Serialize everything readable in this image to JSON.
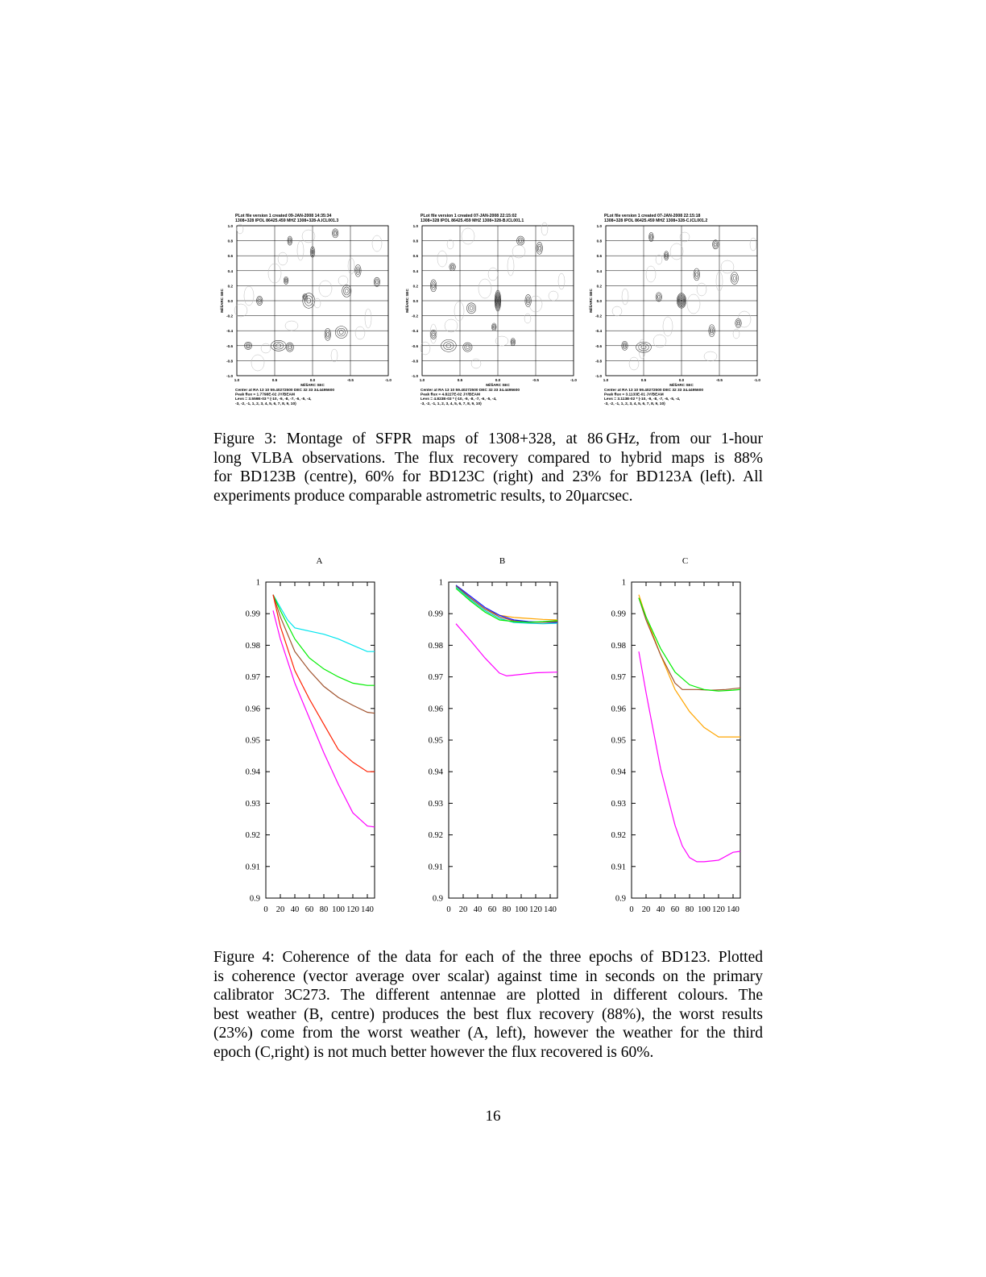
{
  "figure3": {
    "maps": [
      {
        "id": "A",
        "header1": "PLot file version 1  created 09-JAN-2008 14:35:34",
        "header2": "1308+328  IPOL  86425.459 MHZ  1308+328-A.ICL001.3",
        "ylabel": "MilliARC SEC",
        "xlabel": "MilliARC SEC",
        "yticks": [
          "1.0",
          "0.8",
          "0.6",
          "0.4",
          "0.2",
          "0.0",
          "-0.2",
          "-0.4",
          "-0.6",
          "-0.8",
          "-1.0"
        ],
        "xticks": [
          "1.0",
          "0.5",
          "0.0",
          "-0.5",
          "-1.0"
        ],
        "footer1": "Center at RA 13 10 59.40272500  DEC 32 33 34.4495600",
        "footer2": "Peak flux =  1.7798E-02  JY/BEAM",
        "footer3": "Levs = 3.559E-03 * (-10, -9, -8, -7, -6, -5, -4,",
        "footer4": "-3, -2, -1, 1, 2, 3, 4, 5, 6, 7, 8, 9, 10)"
      },
      {
        "id": "B",
        "header1": "PLot file version 1  created 07-JAN-2008 22:15:02",
        "header2": "1308+328  IPOL  86425.459 MHZ  1308+328-B.ICL001.1",
        "ylabel": "MilliARC SEC",
        "xlabel": "MilliARC SEC",
        "yticks": [
          "1.0",
          "0.8",
          "0.6",
          "0.4",
          "0.2",
          "0.0",
          "-0.2",
          "-0.4",
          "-0.6",
          "-0.8",
          "-1.0"
        ],
        "xticks": [
          "1.0",
          "0.5",
          "0.0",
          "-0.5",
          "-1.0"
        ],
        "footer1": "Center at RA 13 10 59.40272500  DEC 32 33 34.4495600",
        "footer2": "Peak flux =  4.8227E-02  JY/BEAM",
        "footer3": "Levs = 4.823E-03 * (-10, -9, -8, -7, -6, -5, -4,",
        "footer4": "-3, -2, -1, 1, 2, 3, 4, 5, 6, 7, 8, 9, 10)"
      },
      {
        "id": "C",
        "header1": "PLot file version 1  created 07-JAN-2008 22:15:18",
        "header2": "1308+328  IPOL  86425.459 MHZ  1308+328-C.ICL001.2",
        "ylabel": "MilliARC SEC",
        "xlabel": "MilliARC SEC",
        "yticks": [
          "1.0",
          "0.8",
          "0.6",
          "0.4",
          "0.2",
          "0.0",
          "-0.2",
          "-0.4",
          "-0.6",
          "-0.8",
          "-1.0"
        ],
        "xticks": [
          "1.0",
          "0.5",
          "0.0",
          "-0.5",
          "-1.0"
        ],
        "footer1": "Center at RA 13 10 59.40272500  DEC 32 33 34.4495600",
        "footer2": "Peak flux =  3.1133E-01  JY/BEAM",
        "footer3": "Levs = 3.113E-02 * (-10, -9, -8, -7, -6, -5, -4,",
        "footer4": "-3, -2, -1, 1, 2, 3, 4, 5, 6, 7, 8, 9, 10)"
      }
    ],
    "caption_lines": [
      "Figure 3: Montage of SFPR maps of 1308+328, at 86 GHz, from our 1-hour",
      "long VLBA observations. The flux recovery compared to hybrid maps is 88%",
      "for BD123B (centre), 60% for BD123C (right) and 23% for BD123A (left). All",
      "experiments produce comparable astrometric results, to 20μarcsec."
    ]
  },
  "chart_data": [
    {
      "type": "line",
      "title": "A",
      "xlim": [
        0,
        150
      ],
      "ylim": [
        0.9,
        1
      ],
      "xticks": [
        "0",
        "20",
        "40",
        "60",
        "80",
        "100",
        "120",
        "140"
      ],
      "yticks": [
        "0.9",
        "0.91",
        "0.92",
        "0.93",
        "0.94",
        "0.95",
        "0.96",
        "0.97",
        "0.98",
        "0.99",
        "1"
      ],
      "series": [
        {
          "color": "#00e5ee",
          "points": [
            [
              10,
              0.996
            ],
            [
              20,
              0.992
            ],
            [
              30,
              0.988
            ],
            [
              40,
              0.9855
            ],
            [
              60,
              0.9845
            ],
            [
              80,
              0.9835
            ],
            [
              100,
              0.982
            ],
            [
              120,
              0.98
            ],
            [
              140,
              0.978
            ],
            [
              150,
              0.978
            ]
          ]
        },
        {
          "color": "#00ee00",
          "points": [
            [
              10,
              0.996
            ],
            [
              20,
              0.991
            ],
            [
              40,
              0.982
            ],
            [
              60,
              0.976
            ],
            [
              80,
              0.9725
            ],
            [
              100,
              0.97
            ],
            [
              120,
              0.968
            ],
            [
              140,
              0.9673
            ],
            [
              150,
              0.9673
            ]
          ]
        },
        {
          "color": "#a0522d",
          "points": [
            [
              10,
              0.996
            ],
            [
              20,
              0.989
            ],
            [
              40,
              0.978
            ],
            [
              60,
              0.972
            ],
            [
              80,
              0.967
            ],
            [
              100,
              0.9635
            ],
            [
              120,
              0.961
            ],
            [
              140,
              0.9588
            ],
            [
              150,
              0.9585
            ]
          ]
        },
        {
          "color": "#ff2000",
          "points": [
            [
              10,
              0.996
            ],
            [
              20,
              0.986
            ],
            [
              40,
              0.972
            ],
            [
              60,
              0.963
            ],
            [
              80,
              0.955
            ],
            [
              100,
              0.947
            ],
            [
              120,
              0.943
            ],
            [
              140,
              0.94
            ],
            [
              150,
              0.94
            ]
          ]
        },
        {
          "color": "#ff00ff",
          "points": [
            [
              10,
              0.991
            ],
            [
              20,
              0.982
            ],
            [
              40,
              0.968
            ],
            [
              60,
              0.957
            ],
            [
              80,
              0.946
            ],
            [
              100,
              0.936
            ],
            [
              120,
              0.927
            ],
            [
              140,
              0.9228
            ],
            [
              150,
              0.9225
            ]
          ]
        }
      ]
    },
    {
      "type": "line",
      "title": "B",
      "xlim": [
        0,
        150
      ],
      "ylim": [
        0.9,
        1
      ],
      "xticks": [
        "0",
        "20",
        "40",
        "60",
        "80",
        "100",
        "120",
        "140"
      ],
      "yticks": [
        "0.9",
        "0.91",
        "0.92",
        "0.93",
        "0.94",
        "0.95",
        "0.96",
        "0.97",
        "0.98",
        "0.99",
        "1"
      ],
      "series": [
        {
          "color": "#ffa500",
          "points": [
            [
              10,
              0.9985
            ],
            [
              30,
              0.995
            ],
            [
              50,
              0.9915
            ],
            [
              70,
              0.9895
            ],
            [
              90,
              0.9888
            ],
            [
              110,
              0.9885
            ],
            [
              130,
              0.9882
            ],
            [
              150,
              0.988
            ]
          ]
        },
        {
          "color": "#1010ff",
          "points": [
            [
              10,
              0.999
            ],
            [
              30,
              0.9955
            ],
            [
              50,
              0.992
            ],
            [
              70,
              0.9895
            ],
            [
              90,
              0.988
            ],
            [
              110,
              0.9875
            ],
            [
              130,
              0.9873
            ],
            [
              150,
              0.9872
            ]
          ]
        },
        {
          "color": "#a0522d",
          "points": [
            [
              10,
              0.9988
            ],
            [
              30,
              0.995
            ],
            [
              50,
              0.9915
            ],
            [
              70,
              0.989
            ],
            [
              90,
              0.9877
            ],
            [
              110,
              0.9873
            ],
            [
              130,
              0.9873
            ],
            [
              150,
              0.9875
            ]
          ]
        },
        {
          "color": "#00cccc",
          "points": [
            [
              10,
              0.9985
            ],
            [
              30,
              0.9945
            ],
            [
              50,
              0.991
            ],
            [
              70,
              0.9885
            ],
            [
              90,
              0.9872
            ],
            [
              110,
              0.987
            ],
            [
              130,
              0.9868
            ],
            [
              150,
              0.987
            ]
          ]
        },
        {
          "color": "#00ee00",
          "points": [
            [
              10,
              0.998
            ],
            [
              30,
              0.994
            ],
            [
              50,
              0.9905
            ],
            [
              70,
              0.988
            ],
            [
              90,
              0.9875
            ],
            [
              110,
              0.9873
            ],
            [
              130,
              0.9875
            ],
            [
              150,
              0.9878
            ]
          ]
        },
        {
          "color": "#ff00ff",
          "points": [
            [
              10,
              0.9868
            ],
            [
              30,
              0.9815
            ],
            [
              50,
              0.976
            ],
            [
              70,
              0.9712
            ],
            [
              80,
              0.9703
            ],
            [
              100,
              0.9708
            ],
            [
              120,
              0.9713
            ],
            [
              150,
              0.9715
            ]
          ]
        }
      ]
    },
    {
      "type": "line",
      "title": "C",
      "xlim": [
        0,
        150
      ],
      "ylim": [
        0.9,
        1
      ],
      "xticks": [
        "0",
        "20",
        "40",
        "60",
        "80",
        "100",
        "120",
        "140"
      ],
      "yticks": [
        "0.9",
        "0.91",
        "0.92",
        "0.93",
        "0.94",
        "0.95",
        "0.96",
        "0.97",
        "0.98",
        "0.99",
        "1"
      ],
      "series": [
        {
          "color": "#ffa500",
          "points": [
            [
              10,
              0.996
            ],
            [
              20,
              0.989
            ],
            [
              40,
              0.977
            ],
            [
              60,
              0.966
            ],
            [
              80,
              0.959
            ],
            [
              100,
              0.954
            ],
            [
              120,
              0.951
            ],
            [
              140,
              0.951
            ],
            [
              150,
              0.951
            ]
          ]
        },
        {
          "color": "#a0522d",
          "points": [
            [
              10,
              0.995
            ],
            [
              20,
              0.988
            ],
            [
              40,
              0.977
            ],
            [
              60,
              0.968
            ],
            [
              70,
              0.966
            ],
            [
              90,
              0.966
            ],
            [
              110,
              0.9658
            ],
            [
              130,
              0.966
            ],
            [
              150,
              0.9665
            ]
          ]
        },
        {
          "color": "#00ee00",
          "points": [
            [
              10,
              0.995
            ],
            [
              20,
              0.989
            ],
            [
              40,
              0.979
            ],
            [
              60,
              0.9715
            ],
            [
              80,
              0.9675
            ],
            [
              100,
              0.966
            ],
            [
              120,
              0.9655
            ],
            [
              140,
              0.9658
            ],
            [
              150,
              0.966
            ]
          ]
        },
        {
          "color": "#ff00ff",
          "points": [
            [
              10,
              0.978
            ],
            [
              20,
              0.965
            ],
            [
              40,
              0.941
            ],
            [
              60,
              0.923
            ],
            [
              70,
              0.9165
            ],
            [
              80,
              0.9128
            ],
            [
              90,
              0.9115
            ],
            [
              100,
              0.9115
            ],
            [
              120,
              0.912
            ],
            [
              140,
              0.9145
            ],
            [
              150,
              0.9148
            ]
          ]
        }
      ]
    }
  ],
  "figure4": {
    "caption_lines": [
      "Figure 4: Coherence of the data for each of the three epochs of BD123. Plotted",
      "is coherence (vector average over scalar) against time in seconds on the primary",
      "calibrator 3C273. The different antennae are plotted in different colours. The",
      "best weather (B, centre) produces the best flux recovery (88%), the worst results",
      "(23%) come from the worst weather (A, left), however the weather for the third",
      "epoch (C,right) is not much better however the flux recovered is 60%."
    ]
  },
  "page_number": "16"
}
